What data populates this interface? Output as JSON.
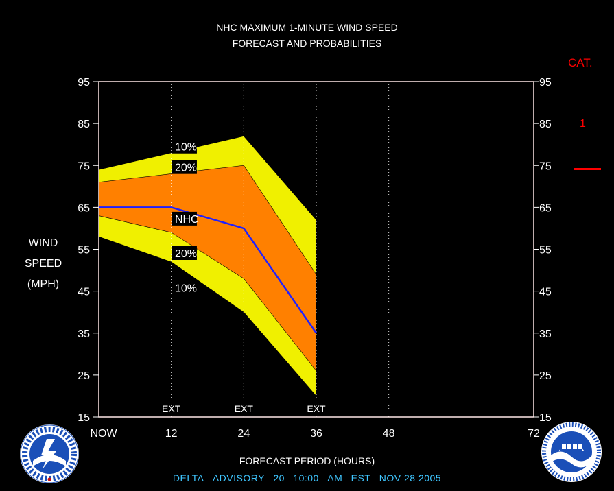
{
  "title_line1": "NHC MAXIMUM 1-MINUTE WIND SPEED",
  "title_line2": "FORECAST AND PROBABILITIES",
  "ylabel_lines": [
    "WIND",
    "SPEED",
    "(MPH)"
  ],
  "xlabel": "FORECAST PERIOD (HOURS)",
  "advisory": {
    "storm": "DELTA",
    "label": "ADVISORY",
    "number": "20",
    "time": "10:00",
    "ampm": "AM",
    "tz": "EST",
    "date": "NOV 28 2005"
  },
  "category": {
    "title": "CAT.",
    "value": "1",
    "color": "#ff0000",
    "threshold_mph": 74
  },
  "chart_data": {
    "type": "area",
    "xlim": [
      0,
      72
    ],
    "ylim": [
      15,
      95
    ],
    "x_ticks": [
      {
        "value": 0,
        "label": "NOW"
      },
      {
        "value": 12,
        "label": "12"
      },
      {
        "value": 24,
        "label": "24"
      },
      {
        "value": 36,
        "label": "36"
      },
      {
        "value": 48,
        "label": "48"
      },
      {
        "value": 72,
        "label": "72"
      }
    ],
    "y_ticks": [
      15,
      25,
      35,
      45,
      55,
      65,
      75,
      85,
      95
    ],
    "grid": "vertical dotted",
    "ext_markers": [
      {
        "x": 12,
        "label": "EXT"
      },
      {
        "x": 24,
        "label": "EXT"
      },
      {
        "x": 36,
        "label": "EXT"
      }
    ],
    "x": [
      0,
      12,
      24,
      36
    ],
    "bands": [
      {
        "upper": [
          74,
          78,
          82,
          62
        ],
        "lower": [
          58,
          52,
          40,
          20
        ],
        "color": "#f0f000",
        "label_upper": "10%",
        "label_lower": "10%"
      },
      {
        "upper": [
          71,
          73,
          75,
          49
        ],
        "lower": [
          63,
          59,
          48,
          26
        ],
        "color": "#ff8000",
        "label_upper": "20%",
        "label_lower": "20%"
      }
    ],
    "series": [
      {
        "name": "NHC",
        "values": [
          65,
          65,
          60,
          35
        ],
        "color": "#2020ff"
      }
    ],
    "band_labels": [
      {
        "text": "10%",
        "x": 12.6,
        "y": 79.5
      },
      {
        "text": "20%",
        "x": 12.6,
        "y": 74.6
      },
      {
        "text": "NHC",
        "x": 12.6,
        "y": 62.3
      },
      {
        "text": "20%",
        "x": 12.6,
        "y": 54.1
      },
      {
        "text": "10%",
        "x": 12.6,
        "y": 45.8
      }
    ]
  }
}
